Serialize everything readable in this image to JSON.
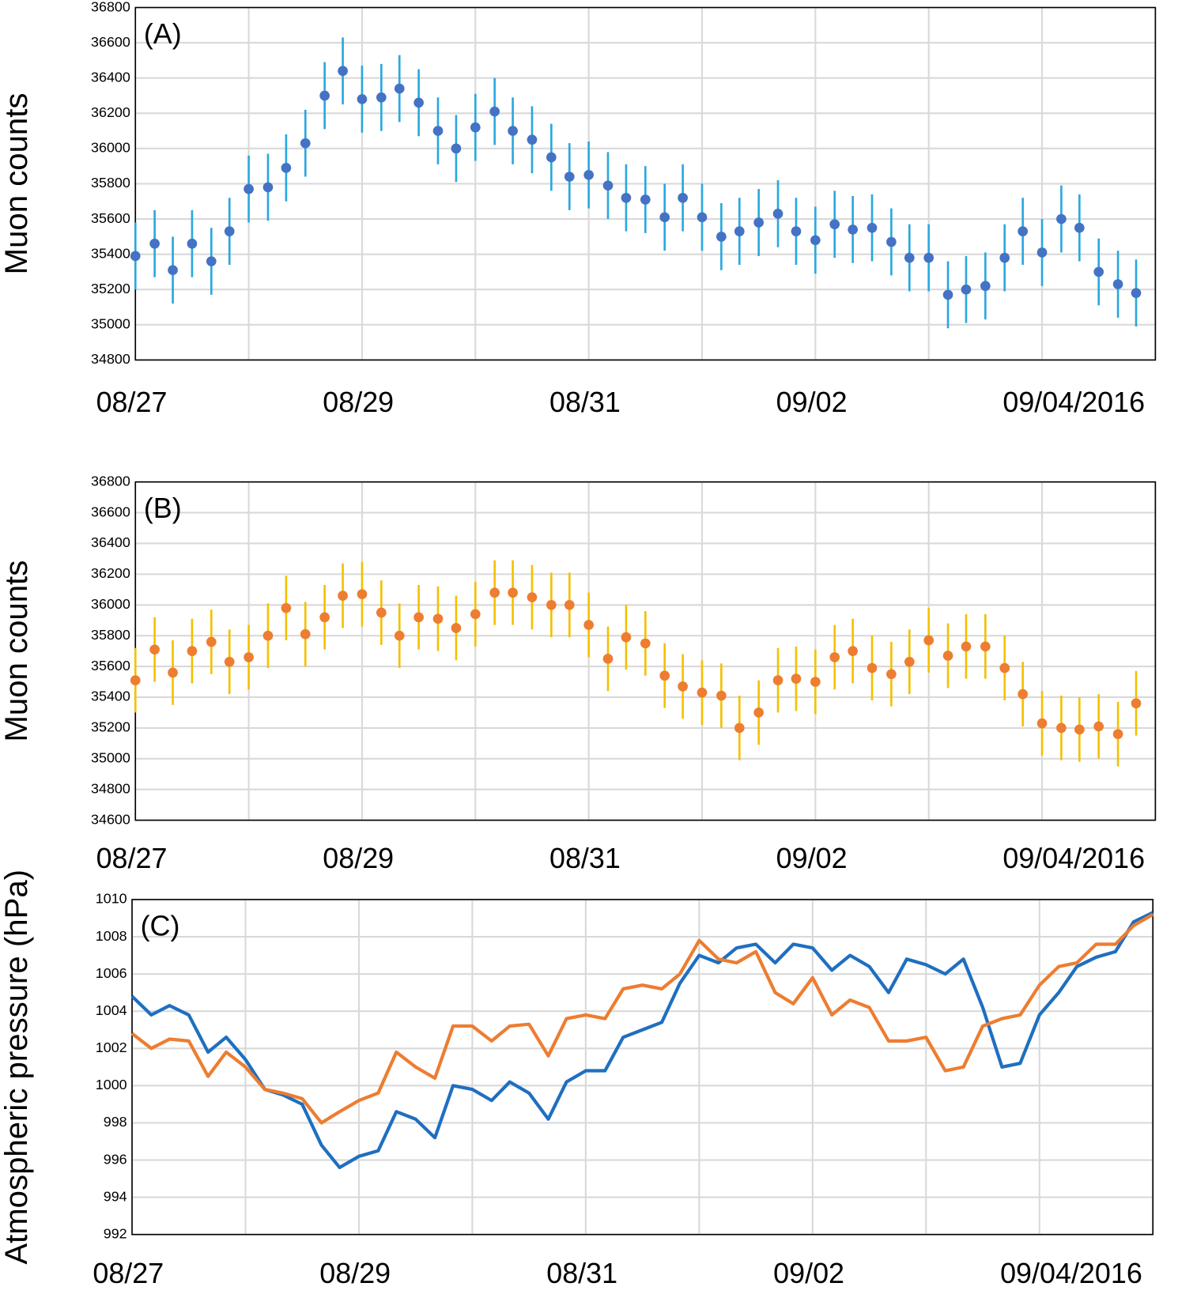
{
  "chart_data": [
    {
      "type": "scatter",
      "label": "(A)",
      "y_label": "Muon counts",
      "color": "#4472c4",
      "error_color": "#29a8e0",
      "error": 190,
      "x": [
        0,
        0.17,
        0.33,
        0.5,
        0.67,
        0.83,
        1,
        1.17,
        1.33,
        1.5,
        1.67,
        1.83,
        2,
        2.17,
        2.33,
        2.5,
        2.67,
        2.83,
        3,
        3.17,
        3.33,
        3.5,
        3.67,
        3.83,
        4,
        4.17,
        4.33,
        4.5,
        4.67,
        4.83,
        5,
        5.17,
        5.33,
        5.5,
        5.67,
        5.83,
        6,
        6.17,
        6.33,
        6.5,
        6.67,
        6.83,
        7,
        7.17,
        7.33,
        7.5,
        7.67,
        7.83,
        8,
        8.17,
        8.33,
        8.5,
        8.67,
        8.83
      ],
      "values": [
        35390,
        35460,
        35310,
        35460,
        35360,
        35530,
        35770,
        35780,
        35890,
        36030,
        36300,
        36440,
        36280,
        36290,
        36340,
        36260,
        36100,
        36000,
        36120,
        36210,
        36100,
        36050,
        35950,
        35840,
        35850,
        35790,
        35720,
        35710,
        35610,
        35720,
        35610,
        35500,
        35530,
        35580,
        35630,
        35530,
        35480,
        35570,
        35540,
        35550,
        35470,
        35380,
        35380,
        35170,
        35200,
        35220,
        35380,
        35530,
        35410,
        35600,
        35550,
        35300,
        35230,
        35180
      ],
      "xlim": [
        0,
        9
      ],
      "xticks": [
        {
          "value": 0,
          "label": "08/27"
        },
        {
          "value": 2,
          "label": "08/29"
        },
        {
          "value": 4,
          "label": "08/31"
        },
        {
          "value": 6,
          "label": "09/02"
        },
        {
          "value": 8,
          "label": "09/04/2016"
        }
      ],
      "xgrid": [
        0,
        1,
        2,
        3,
        4,
        5,
        6,
        7,
        8,
        9
      ],
      "ylim": [
        34800,
        36800
      ],
      "yticks": [
        34800,
        35000,
        35200,
        35400,
        35600,
        35800,
        36000,
        36200,
        36400,
        36600,
        36800
      ],
      "grid": true
    },
    {
      "type": "scatter",
      "label": "(B)",
      "y_label": "Muon counts",
      "color": "#ed7d31",
      "error_color": "#f5c000",
      "error": 210,
      "x": [
        0,
        0.17,
        0.33,
        0.5,
        0.67,
        0.83,
        1,
        1.17,
        1.33,
        1.5,
        1.67,
        1.83,
        2,
        2.17,
        2.33,
        2.5,
        2.67,
        2.83,
        3,
        3.17,
        3.33,
        3.5,
        3.67,
        3.83,
        4,
        4.17,
        4.33,
        4.5,
        4.67,
        4.83,
        5,
        5.17,
        5.33,
        5.5,
        5.67,
        5.83,
        6,
        6.17,
        6.33,
        6.5,
        6.67,
        6.83,
        7,
        7.17,
        7.33,
        7.5,
        7.67,
        7.83,
        8,
        8.17,
        8.33,
        8.5,
        8.67,
        8.83
      ],
      "values": [
        35510,
        35710,
        35560,
        35700,
        35760,
        35630,
        35660,
        35800,
        35980,
        35810,
        35920,
        36060,
        36070,
        35950,
        35800,
        35920,
        35910,
        35850,
        35940,
        36080,
        36080,
        36050,
        36000,
        36000,
        35870,
        35650,
        35790,
        35750,
        35540,
        35470,
        35430,
        35410,
        35200,
        35300,
        35510,
        35520,
        35500,
        35660,
        35700,
        35590,
        35550,
        35630,
        35770,
        35670,
        35730,
        35730,
        35590,
        35420,
        35230,
        35200,
        35190,
        35210,
        35160,
        35360
      ],
      "xlim": [
        0,
        9
      ],
      "xticks": [
        {
          "value": 0,
          "label": "08/27"
        },
        {
          "value": 2,
          "label": "08/29"
        },
        {
          "value": 4,
          "label": "08/31"
        },
        {
          "value": 6,
          "label": "09/02"
        },
        {
          "value": 8,
          "label": "09/04/2016"
        }
      ],
      "xgrid": [
        0,
        1,
        2,
        3,
        4,
        5,
        6,
        7,
        8,
        9
      ],
      "ylim": [
        34600,
        36800
      ],
      "yticks": [
        34600,
        34800,
        35000,
        35200,
        35400,
        35600,
        35800,
        36000,
        36200,
        36400,
        36600,
        36800
      ],
      "grid": true
    },
    {
      "type": "line",
      "label": "(C)",
      "y_label": "Atmospheric pressure (hPa)",
      "x": [
        0,
        0.17,
        0.33,
        0.5,
        0.67,
        0.83,
        1,
        1.17,
        1.33,
        1.5,
        1.67,
        1.83,
        2,
        2.17,
        2.33,
        2.5,
        2.67,
        2.83,
        3,
        3.17,
        3.33,
        3.5,
        3.67,
        3.83,
        4,
        4.17,
        4.33,
        4.5,
        4.67,
        4.83,
        5,
        5.17,
        5.33,
        5.5,
        5.67,
        5.83,
        6,
        6.17,
        6.33,
        6.5,
        6.67,
        6.83,
        7,
        7.17,
        7.33,
        7.5,
        7.67,
        7.83,
        8,
        8.17,
        8.33,
        8.5,
        8.67,
        8.83,
        9
      ],
      "series": [
        {
          "color": "#1f6fc0",
          "values": [
            1004.8,
            1003.8,
            1004.3,
            1003.8,
            1001.8,
            1002.6,
            1001.4,
            999.8,
            999.5,
            999.0,
            996.8,
            995.6,
            996.2,
            996.5,
            998.6,
            998.2,
            997.2,
            1000.0,
            999.8,
            999.2,
            1000.2,
            999.6,
            998.2,
            1000.2,
            1000.8,
            1000.8,
            1002.6,
            1003.0,
            1003.4,
            1005.5,
            1007.0,
            1006.6,
            1007.4,
            1007.6,
            1006.6,
            1007.6,
            1007.4,
            1006.2,
            1007.0,
            1006.4,
            1005.0,
            1006.8,
            1006.5,
            1006.0,
            1006.8,
            1004.2,
            1001.0,
            1001.2,
            1003.8,
            1005.0,
            1006.4,
            1006.9,
            1007.2,
            1008.8,
            1009.3
          ]
        },
        {
          "color": "#ed7d31",
          "values": [
            1002.8,
            1002.0,
            1002.5,
            1002.4,
            1000.5,
            1001.8,
            1001.0,
            999.8,
            999.6,
            999.3,
            998.0,
            998.6,
            999.2,
            999.6,
            1001.8,
            1001.0,
            1000.4,
            1003.2,
            1003.2,
            1002.4,
            1003.2,
            1003.3,
            1001.6,
            1003.6,
            1003.8,
            1003.6,
            1005.2,
            1005.4,
            1005.2,
            1006.0,
            1007.8,
            1006.8,
            1006.6,
            1007.2,
            1005.0,
            1004.4,
            1005.8,
            1003.8,
            1004.6,
            1004.2,
            1002.4,
            1002.4,
            1002.6,
            1000.8,
            1001.0,
            1003.2,
            1003.6,
            1003.8,
            1005.4,
            1006.4,
            1006.6,
            1007.6,
            1007.6,
            1008.6,
            1009.2
          ]
        }
      ],
      "xlim": [
        0,
        9
      ],
      "xticks": [
        {
          "value": 0,
          "label": "08/27"
        },
        {
          "value": 2,
          "label": "08/29"
        },
        {
          "value": 4,
          "label": "08/31"
        },
        {
          "value": 6,
          "label": "09/02"
        },
        {
          "value": 8,
          "label": "09/04/2016"
        }
      ],
      "xgrid": [
        0,
        1,
        2,
        3,
        4,
        5,
        6,
        7,
        8,
        9
      ],
      "ylim": [
        992,
        1010
      ],
      "yticks": [
        992,
        994,
        996,
        998,
        1000,
        1002,
        1004,
        1006,
        1008,
        1010
      ],
      "grid": true
    }
  ]
}
